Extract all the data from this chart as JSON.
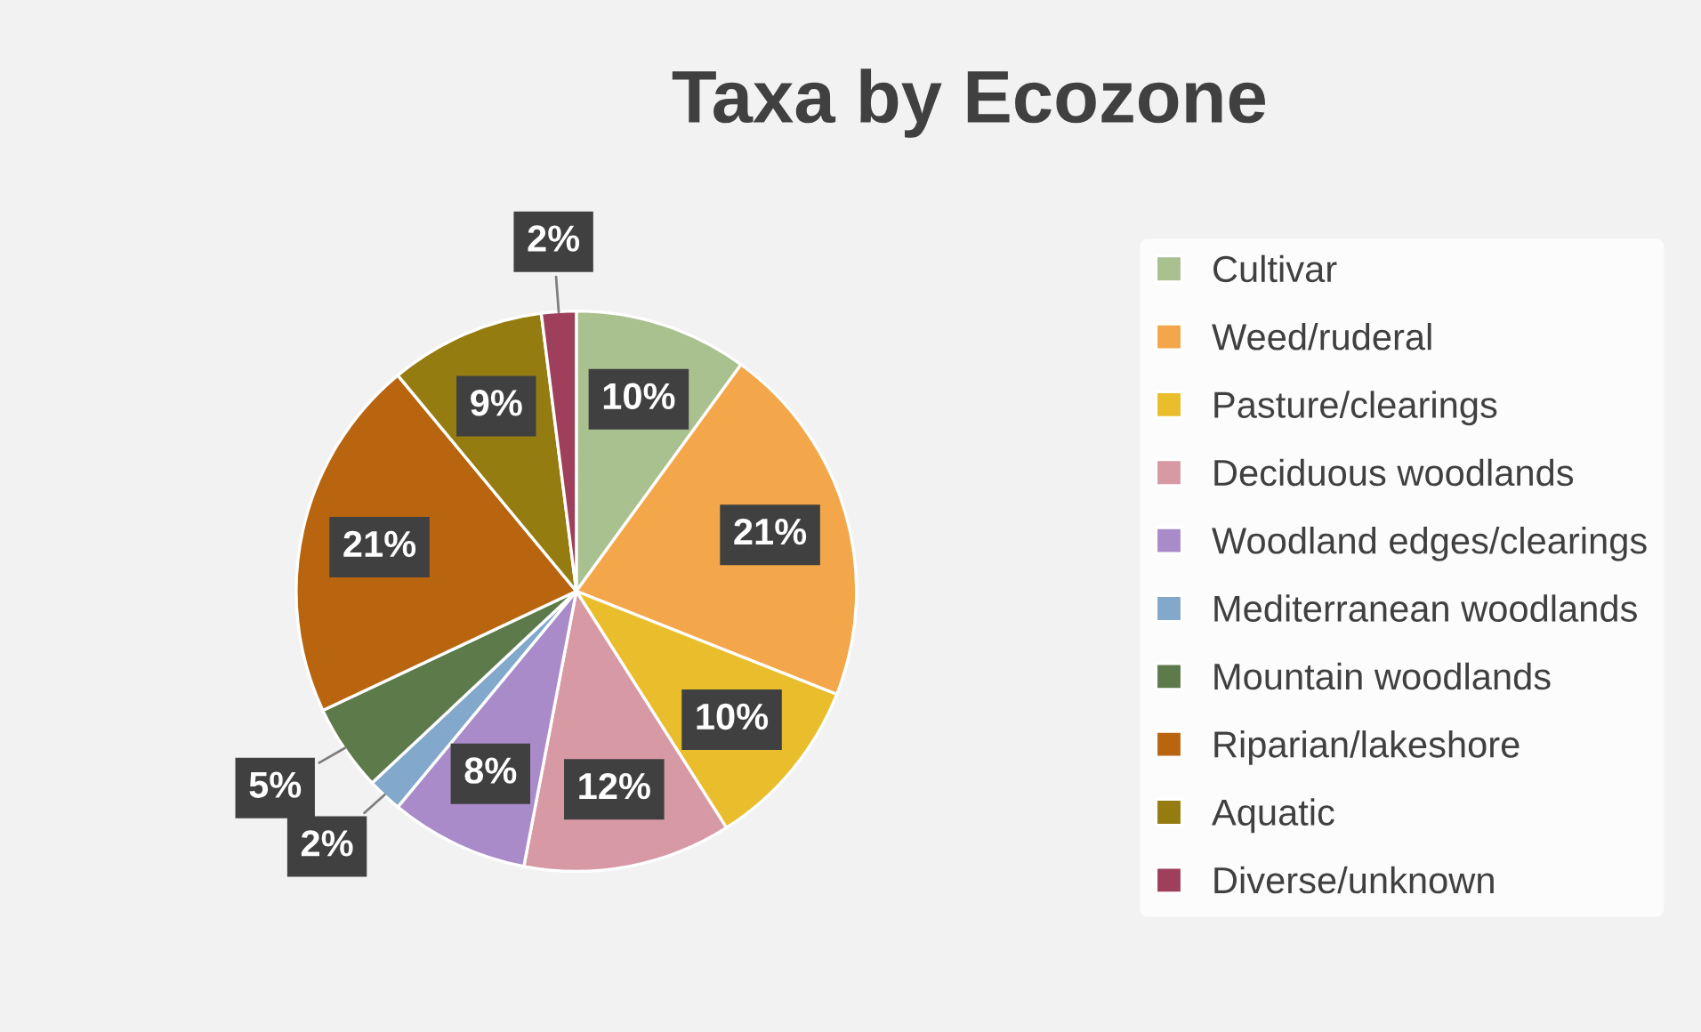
{
  "chart_data": {
    "type": "pie",
    "title": "Taxa by Ecozone",
    "categories": [
      "Cultivar",
      "Weed/ruderal",
      "Pasture/clearings",
      "Deciduous woodlands",
      "Woodland edges/clearings",
      "Mediterranean woodlands",
      "Mountain woodlands",
      "Riparian/lakeshore",
      "Aquatic",
      "Diverse/unknown"
    ],
    "values": [
      10,
      21,
      10,
      12,
      8,
      2,
      5,
      21,
      9,
      2
    ],
    "colors": [
      "#a9c08f",
      "#f4a64a",
      "#e9bd2b",
      "#d799a4",
      "#a98bc9",
      "#82a8cb",
      "#5d7a4b",
      "#b9650f",
      "#947c10",
      "#9e3f5c"
    ],
    "value_labels": [
      "10%",
      "21%",
      "10%",
      "12%",
      "8%",
      "2%",
      "5%",
      "21%",
      "9%",
      "2%"
    ],
    "legend": "right"
  }
}
